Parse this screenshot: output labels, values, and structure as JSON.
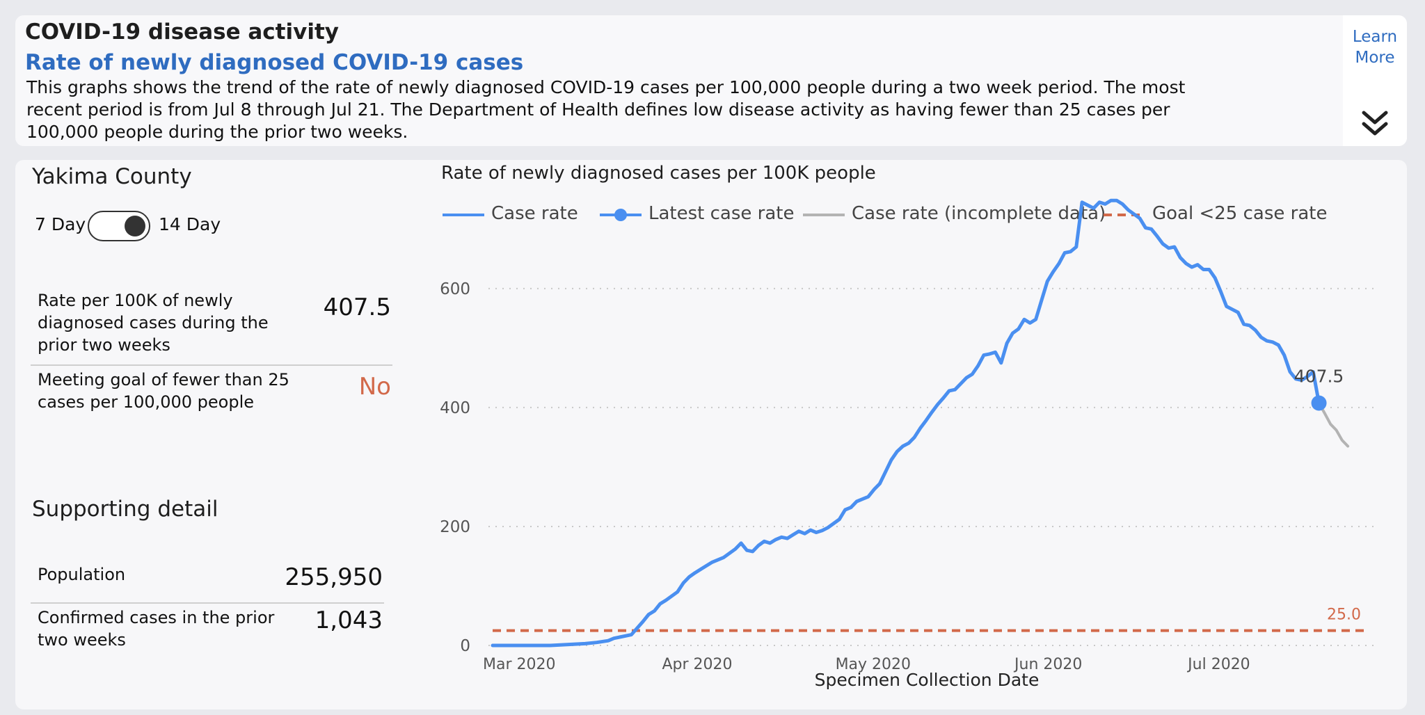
{
  "header": {
    "title": "COVID-19 disease activity",
    "subtitle": "Rate of newly diagnosed COVID-19 cases",
    "description": "This graphs shows the trend of the rate of newly diagnosed COVID-19 cases per 100,000 people during a two week period. The most recent period is from Jul 8 through Jul 21. The Department of Health defines low disease activity as having fewer than 25 cases per 100,000 people during the prior two weeks.",
    "learn_more": "Learn More"
  },
  "panel": {
    "county": "Yakima County",
    "toggle_left": "7 Day",
    "toggle_right": "14 Day",
    "rate_label": "Rate per 100K of newly diagnosed cases during the prior two weeks",
    "rate_value": "407.5",
    "goal_label": "Meeting goal of fewer than 25 cases per 100,000 people",
    "goal_value": "No",
    "supporting_title": "Supporting detail",
    "population_label": "Population",
    "population_value": "255,950",
    "confirmed_label": "Confirmed cases in the prior two weeks",
    "confirmed_value": "1,043"
  },
  "chart_data": {
    "type": "line",
    "title": "Rate of newly diagnosed cases per 100K people",
    "xlabel": "Specimen Collection Date",
    "ylabel": "",
    "ylim": [
      0,
      760
    ],
    "y_ticks": [
      "0",
      "200",
      "400",
      "600"
    ],
    "y_tick_values": [
      0,
      200,
      400,
      600
    ],
    "x_ticks": [
      "Mar 2020",
      "Apr 2020",
      "May 2020",
      "Jun 2020",
      "Jul 2020"
    ],
    "x_tick_days": [
      0,
      31,
      61,
      92,
      122
    ],
    "legend": [
      "Case rate",
      "Latest case rate",
      "Case rate (incomplete data)",
      "Goal <25 case rate"
    ],
    "goal": 25.0,
    "goal_label": "25.0",
    "latest": {
      "day": 143,
      "value": 407.5,
      "label": "407.5"
    },
    "series": [
      {
        "name": "Case rate",
        "color": "#4a8ff0",
        "points": [
          [
            0,
            0
          ],
          [
            5,
            0
          ],
          [
            10,
            0
          ],
          [
            12,
            1
          ],
          [
            14,
            2
          ],
          [
            16,
            3
          ],
          [
            18,
            5
          ],
          [
            20,
            8
          ],
          [
            21,
            12
          ],
          [
            22,
            14
          ],
          [
            24,
            18
          ],
          [
            26,
            40
          ],
          [
            27,
            52
          ],
          [
            28,
            58
          ],
          [
            29,
            70
          ],
          [
            30,
            76
          ],
          [
            32,
            90
          ],
          [
            33,
            105
          ],
          [
            34,
            115
          ],
          [
            35,
            122
          ],
          [
            36,
            128
          ],
          [
            38,
            140
          ],
          [
            40,
            148
          ],
          [
            41,
            155
          ],
          [
            42,
            162
          ],
          [
            43,
            172
          ],
          [
            44,
            160
          ],
          [
            45,
            158
          ],
          [
            46,
            168
          ],
          [
            47,
            175
          ],
          [
            48,
            172
          ],
          [
            49,
            178
          ],
          [
            50,
            182
          ],
          [
            51,
            180
          ],
          [
            52,
            186
          ],
          [
            53,
            192
          ],
          [
            54,
            188
          ],
          [
            55,
            194
          ],
          [
            56,
            190
          ],
          [
            57,
            193
          ],
          [
            58,
            198
          ],
          [
            59,
            205
          ],
          [
            60,
            212
          ],
          [
            61,
            228
          ],
          [
            62,
            232
          ],
          [
            63,
            242
          ],
          [
            64,
            246
          ],
          [
            65,
            250
          ],
          [
            66,
            262
          ],
          [
            67,
            272
          ],
          [
            68,
            292
          ],
          [
            69,
            312
          ],
          [
            70,
            326
          ],
          [
            71,
            335
          ],
          [
            72,
            340
          ],
          [
            73,
            350
          ],
          [
            74,
            365
          ],
          [
            75,
            378
          ],
          [
            76,
            392
          ],
          [
            77,
            405
          ],
          [
            78,
            416
          ],
          [
            79,
            428
          ],
          [
            80,
            430
          ],
          [
            81,
            440
          ],
          [
            82,
            450
          ],
          [
            83,
            456
          ],
          [
            84,
            470
          ],
          [
            85,
            488
          ],
          [
            86,
            490
          ],
          [
            87,
            493
          ],
          [
            88,
            475
          ],
          [
            89,
            508
          ],
          [
            90,
            525
          ],
          [
            91,
            532
          ],
          [
            92,
            548
          ],
          [
            93,
            542
          ],
          [
            94,
            548
          ],
          [
            95,
            580
          ],
          [
            96,
            612
          ],
          [
            97,
            628
          ],
          [
            98,
            642
          ],
          [
            99,
            660
          ],
          [
            100,
            662
          ],
          [
            101,
            670
          ],
          [
            102,
            745
          ],
          [
            103,
            740
          ],
          [
            104,
            735
          ],
          [
            105,
            745
          ],
          [
            106,
            742
          ],
          [
            107,
            748
          ],
          [
            108,
            748
          ],
          [
            109,
            742
          ],
          [
            110,
            732
          ],
          [
            111,
            725
          ],
          [
            112,
            718
          ],
          [
            113,
            702
          ],
          [
            114,
            700
          ],
          [
            115,
            688
          ],
          [
            116,
            675
          ],
          [
            117,
            668
          ],
          [
            118,
            670
          ],
          [
            119,
            652
          ],
          [
            120,
            642
          ],
          [
            121,
            636
          ],
          [
            122,
            640
          ],
          [
            123,
            632
          ],
          [
            124,
            632
          ],
          [
            125,
            618
          ],
          [
            126,
            595
          ],
          [
            127,
            570
          ],
          [
            128,
            565
          ],
          [
            129,
            560
          ],
          [
            130,
            540
          ],
          [
            131,
            538
          ],
          [
            132,
            530
          ],
          [
            133,
            518
          ],
          [
            134,
            512
          ],
          [
            135,
            510
          ],
          [
            136,
            505
          ],
          [
            137,
            488
          ],
          [
            138,
            460
          ],
          [
            139,
            448
          ],
          [
            140,
            446
          ],
          [
            141,
            452
          ],
          [
            142,
            460
          ],
          [
            143,
            407.5
          ]
        ]
      },
      {
        "name": "Case rate (incomplete data)",
        "color": "#b3b3b3",
        "points": [
          [
            143,
            407.5
          ],
          [
            144,
            390
          ],
          [
            145,
            372
          ],
          [
            146,
            362
          ],
          [
            147,
            345
          ],
          [
            148,
            335
          ]
        ]
      }
    ]
  },
  "colors": {
    "accent": "#2f6cc0",
    "line": "#4a8ff0",
    "incomplete": "#b3b3b3",
    "goal": "#d2694a"
  }
}
